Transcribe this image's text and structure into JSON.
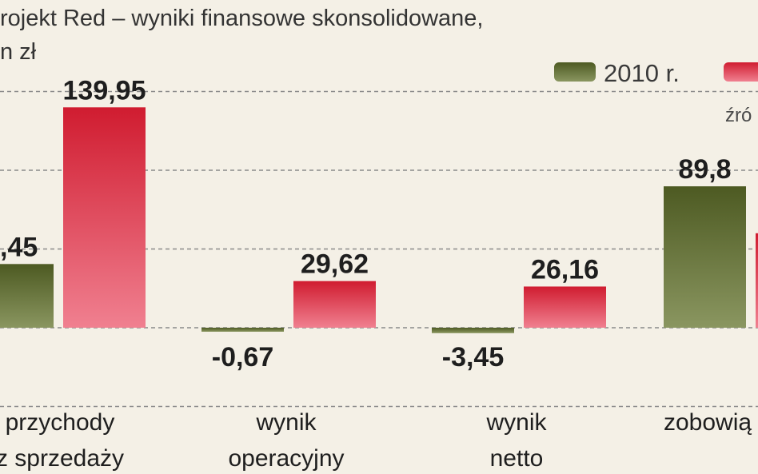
{
  "chart_data": {
    "type": "bar",
    "title_lines": [
      "rojekt Red – wyniki finansowe skonsolidowane,",
      "n zł"
    ],
    "categories": [
      [
        "przychody",
        "z sprzedaży"
      ],
      [
        "wynik",
        "operacyjny"
      ],
      [
        "wynik",
        "netto"
      ],
      [
        "zobowią",
        ""
      ]
    ],
    "series": [
      {
        "name": "2010 r.",
        "values": [
          40.45,
          -0.67,
          -3.45,
          89.8
        ],
        "labels": [
          ",45",
          "-0,67",
          "-3,45",
          "89,8"
        ],
        "color": "#6b7a3a"
      },
      {
        "name": "",
        "values": [
          139.95,
          29.62,
          26.16,
          60
        ],
        "labels": [
          "139,95",
          "29,62",
          "26,16",
          ""
        ],
        "color": "#d42a3c"
      }
    ],
    "source": "źró",
    "ylim": [
      -50,
      150
    ],
    "gridlines": [
      -50,
      0,
      50,
      100,
      150
    ],
    "legend": "top-right"
  }
}
